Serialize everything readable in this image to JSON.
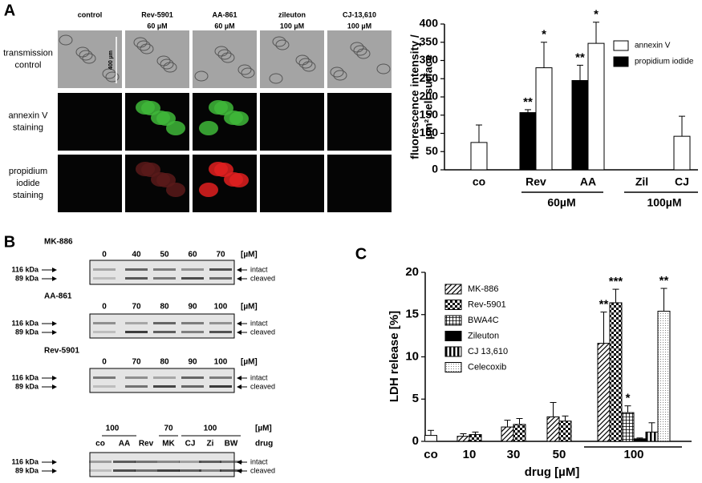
{
  "panel_labels": [
    "A",
    "B",
    "C"
  ],
  "micrographs": {
    "columns": [
      {
        "name": "control"
      },
      {
        "name": "Rev-5901",
        "dose": "60 µM"
      },
      {
        "name": "AA-861",
        "dose": "60 µM"
      },
      {
        "name": "zileuton",
        "dose": "100 µM"
      },
      {
        "name": "CJ-13,610",
        "dose": "100 µM"
      }
    ],
    "rows": [
      [
        "transmission",
        "control"
      ],
      [
        "annexin V",
        "staining"
      ],
      [
        "propidium",
        "iodide",
        "staining"
      ]
    ],
    "scale_bar": "400 µm"
  },
  "blots": [
    {
      "drug": "MK-886",
      "lanes": [
        "0",
        "40",
        "50",
        "60",
        "70"
      ],
      "unit": "[µM]"
    },
    {
      "drug": "AA-861",
      "lanes": [
        "0",
        "70",
        "80",
        "90",
        "100"
      ],
      "unit": "[µM]"
    },
    {
      "drug": "Rev-5901",
      "lanes": [
        "0",
        "70",
        "80",
        "90",
        "100"
      ],
      "unit": "[µM]"
    },
    {
      "doses": [
        "100",
        "70",
        "100"
      ],
      "unit": "[µM]",
      "lanes": [
        "co",
        "AA",
        "Rev",
        "MK",
        "CJ",
        "Zi",
        "BW"
      ],
      "lanes_label": "drug"
    }
  ],
  "blot_markers": [
    "116 kDa",
    "89 kDa"
  ],
  "blot_bands": [
    "intact",
    "cleaved"
  ],
  "chart_data": [
    {
      "type": "bar",
      "ylabel": [
        "fluorescence intensity /",
        "µm² cell surface"
      ],
      "categories": [
        "co",
        "Rev",
        "AA",
        "Zil",
        "CJ"
      ],
      "groups": [
        "60µM",
        "100µM"
      ],
      "ylim": [
        0,
        400
      ],
      "yticks": [
        0,
        50,
        100,
        150,
        200,
        250,
        300,
        350,
        400
      ],
      "series": [
        {
          "name": "annexin V",
          "color": "#ffffff",
          "values": [
            75,
            280,
            347,
            null,
            92
          ],
          "errors": [
            48,
            70,
            58,
            null,
            55
          ],
          "stars": [
            null,
            "*",
            "*",
            null,
            null
          ]
        },
        {
          "name": "propidium iodide",
          "color": "#000000",
          "values": [
            null,
            157,
            245,
            null,
            null
          ],
          "errors": [
            null,
            8,
            42,
            null,
            null
          ],
          "stars": [
            null,
            "**",
            "**",
            null,
            null
          ]
        }
      ]
    },
    {
      "type": "bar",
      "ylabel": "LDH release [%]",
      "xlabel": "drug [µM]",
      "categories": [
        "co",
        "10",
        "30",
        "50",
        "100"
      ],
      "ylim": [
        0,
        20
      ],
      "yticks": [
        0,
        5,
        10,
        15,
        20
      ],
      "control": {
        "value": 0.7,
        "error": 0.6
      },
      "series": [
        {
          "name": "MK-886",
          "pattern": "diagonal",
          "values": [
            null,
            0.6,
            1.7,
            2.9,
            11.6
          ],
          "errors": [
            null,
            0.3,
            0.8,
            1.7,
            3.7
          ],
          "stars": [
            null,
            null,
            null,
            null,
            "**"
          ]
        },
        {
          "name": "Rev-5901",
          "pattern": "checker",
          "values": [
            null,
            0.8,
            2.0,
            2.4,
            16.4
          ],
          "errors": [
            null,
            0.3,
            0.7,
            0.6,
            1.6
          ],
          "stars": [
            null,
            null,
            null,
            null,
            "***"
          ]
        },
        {
          "name": "BWA4C",
          "pattern": "grid",
          "values": [
            null,
            null,
            null,
            null,
            3.4
          ],
          "errors": [
            null,
            null,
            null,
            null,
            0.8
          ],
          "stars": [
            null,
            null,
            null,
            null,
            "*"
          ]
        },
        {
          "name": "Zileuton",
          "pattern": "solid",
          "values": [
            null,
            null,
            null,
            null,
            0.3
          ],
          "errors": [
            null,
            null,
            null,
            null,
            0.1
          ],
          "stars": [
            null,
            null,
            null,
            null,
            null
          ]
        },
        {
          "name": "CJ 13,610",
          "pattern": "vertical",
          "values": [
            null,
            null,
            null,
            null,
            1.1
          ],
          "errors": [
            null,
            null,
            null,
            null,
            1.1
          ],
          "stars": [
            null,
            null,
            null,
            null,
            null
          ]
        },
        {
          "name": "Celecoxib",
          "pattern": "dotted",
          "values": [
            null,
            null,
            null,
            null,
            15.4
          ],
          "errors": [
            null,
            null,
            null,
            null,
            2.7
          ],
          "stars": [
            null,
            null,
            null,
            null,
            "**"
          ]
        }
      ]
    }
  ]
}
